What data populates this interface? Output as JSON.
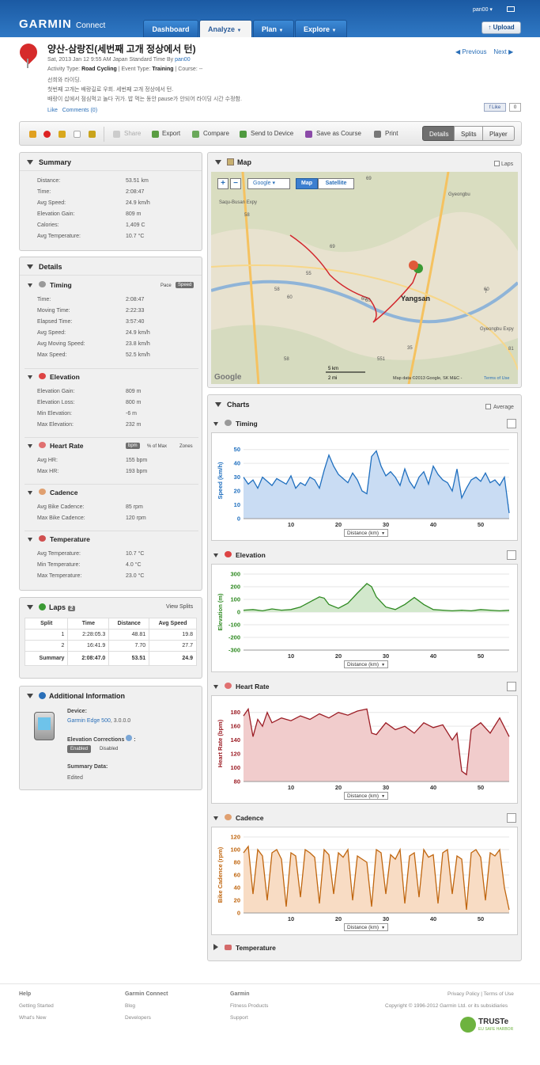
{
  "nav": {
    "logo": "GARMIN",
    "logo_sub": "Connect",
    "tabs": [
      "Dashboard",
      "Analyze",
      "Plan",
      "Explore"
    ],
    "user": "pan00",
    "upload": "Upload"
  },
  "activity": {
    "title": "양산-삼랑진(세번째 고개 정상에서 턴)",
    "date_prefix": "Sat, 2013 Jan 12 9:55 AM Japan Standard Time By",
    "author": "pan00",
    "type_label": "Activity Type:",
    "type": "Road Cycling",
    "event_label": "| Event Type:",
    "event": "Training",
    "course_label": "| Course: --",
    "desc1": "선희와 라이딩.",
    "desc2": "첫번째 고개는 배랑길로 우회. 세번째 고개 정상에서 턴.",
    "desc3": "배랑이 삽에서 점심먹고 놀다 귀가. 밥 먹는 동안 pause가 안되어 라이딩 시간 수정함.",
    "like": "Like",
    "comments": "Comments (0)",
    "previous": "Previous",
    "next": "Next",
    "fb_like": "Like",
    "fb_count": "0"
  },
  "toolbar": {
    "share": "Share",
    "export": "Export",
    "compare": "Compare",
    "send": "Send to Device",
    "save_course": "Save as Course",
    "print": "Print",
    "views": [
      "Details",
      "Splits",
      "Player"
    ]
  },
  "summary": {
    "title": "Summary",
    "rows": [
      {
        "label": "Distance:",
        "value": "53.51 km"
      },
      {
        "label": "Time:",
        "value": "2:08:47"
      },
      {
        "label": "Avg Speed:",
        "value": "24.9 km/h"
      },
      {
        "label": "Elevation Gain:",
        "value": "809 m"
      },
      {
        "label": "Calories:",
        "value": "1,409 C"
      },
      {
        "label": "Avg Temperature:",
        "value": "10.7 °C"
      }
    ]
  },
  "details": {
    "title": "Details",
    "timing": {
      "title": "Timing",
      "pace": "Pace",
      "speed": "Speed",
      "rows": [
        {
          "label": "Time:",
          "value": "2:08:47"
        },
        {
          "label": "Moving Time:",
          "value": "2:22:33"
        },
        {
          "label": "Elapsed Time:",
          "value": "3:57:40"
        },
        {
          "label": "Avg Speed:",
          "value": "24.9 km/h"
        },
        {
          "label": "Avg Moving Speed:",
          "value": "23.8 km/h"
        },
        {
          "label": "Max Speed:",
          "value": "52.5 km/h"
        }
      ]
    },
    "elevation": {
      "title": "Elevation",
      "rows": [
        {
          "label": "Elevation Gain:",
          "value": "809 m"
        },
        {
          "label": "Elevation Loss:",
          "value": "800 m"
        },
        {
          "label": "Min Elevation:",
          "value": "-6 m"
        },
        {
          "label": "Max Elevation:",
          "value": "232 m"
        }
      ]
    },
    "hr": {
      "title": "Heart Rate",
      "bpm": "bpm",
      "pct": "% of Max",
      "zones": "Zones",
      "rows": [
        {
          "label": "Avg HR:",
          "value": "155 bpm"
        },
        {
          "label": "Max HR:",
          "value": "193 bpm"
        }
      ]
    },
    "cadence": {
      "title": "Cadence",
      "rows": [
        {
          "label": "Avg Bike Cadence:",
          "value": "85 rpm"
        },
        {
          "label": "Max Bike Cadence:",
          "value": "120 rpm"
        }
      ]
    },
    "temperature": {
      "title": "Temperature",
      "rows": [
        {
          "label": "Avg Temperature:",
          "value": "10.7 °C"
        },
        {
          "label": "Min Temperature:",
          "value": "4.0 °C"
        },
        {
          "label": "Max Temperature:",
          "value": "23.0 °C"
        }
      ]
    }
  },
  "laps": {
    "title": "Laps",
    "count": "2",
    "view_splits": "View Splits",
    "headers": [
      "Split",
      "Time",
      "Distance",
      "Avg Speed"
    ],
    "rows": [
      [
        "1",
        "2:28:05.3",
        "48.81",
        "19.8"
      ],
      [
        "2",
        "16:41.9",
        "7.70",
        "27.7"
      ],
      [
        "Summary",
        "2:08:47.0",
        "53.51",
        "24.9"
      ]
    ]
  },
  "additional": {
    "title": "Additional Information",
    "device_label": "Device:",
    "device": "Garmin Edge 500",
    "device_ver": ", 3.0.0.0",
    "elev_corr": "Elevation Corrections",
    "enabled": "Enabled",
    "disabled": "Disabled",
    "summary_data": "Summary Data:",
    "edited": "Edited"
  },
  "map": {
    "title": "Map",
    "laps": "Laps",
    "provider": "Google",
    "map_btn": "Map",
    "sat_btn": "Satellite",
    "city": "Yangsan",
    "scale_km": "5 km",
    "scale_mi": "2 mi",
    "copyright": "Map data ©2013 Google, SK M&C -",
    "terms": "Terms of Use",
    "google": "Google",
    "road_labels": [
      "Gyeongbu",
      "Saqu-Busan Expy",
      "58",
      "69",
      "55",
      "60",
      "58",
      "60",
      "60",
      "69",
      "60",
      "7",
      "35",
      "551",
      "58",
      "81",
      "Gyeongbu Expy"
    ]
  },
  "charts": {
    "title": "Charts",
    "average": "Average",
    "xlabel": "Distance (km)",
    "temperature_title": "Temperature"
  },
  "chart_data": [
    {
      "type": "line",
      "title": "Timing",
      "ylabel": "Speed (km/h)",
      "xlabel": "Distance (km)",
      "color": "#1f6fbf",
      "fill": "#c9dcf3",
      "xlim": [
        0,
        56
      ],
      "ylim": [
        0,
        55
      ],
      "yticks": [
        0,
        10,
        20,
        30,
        40,
        50
      ],
      "xticks": [
        10,
        20,
        30,
        40,
        50
      ],
      "x": [
        0,
        1,
        2,
        3,
        4,
        5,
        6,
        7,
        8,
        9,
        10,
        11,
        12,
        13,
        14,
        15,
        16,
        17,
        18,
        19,
        20,
        21,
        22,
        23,
        24,
        25,
        26,
        27,
        28,
        29,
        30,
        31,
        32,
        33,
        34,
        35,
        36,
        37,
        38,
        39,
        40,
        41,
        42,
        43,
        44,
        45,
        46,
        47,
        48,
        49,
        50,
        51,
        52,
        53,
        54,
        55,
        56
      ],
      "y": [
        30,
        25,
        28,
        22,
        30,
        27,
        24,
        29,
        27,
        25,
        31,
        22,
        26,
        24,
        30,
        28,
        22,
        35,
        46,
        38,
        32,
        29,
        26,
        33,
        28,
        20,
        18,
        45,
        49,
        38,
        31,
        34,
        30,
        24,
        36,
        27,
        22,
        30,
        34,
        25,
        38,
        32,
        28,
        26,
        20,
        36,
        15,
        22,
        28,
        30,
        27,
        33,
        26,
        28,
        24,
        30,
        4
      ]
    },
    {
      "type": "line",
      "title": "Elevation",
      "ylabel": "Elevation (m)",
      "xlabel": "Distance (km)",
      "color": "#2f8a22",
      "fill": "#d2e8cc",
      "xlim": [
        0,
        56
      ],
      "ylim": [
        -300,
        300
      ],
      "yticks": [
        -300,
        -200,
        -100,
        0,
        100,
        200,
        300
      ],
      "xticks": [
        10,
        20,
        30,
        40,
        50
      ],
      "x": [
        0,
        2,
        4,
        6,
        8,
        10,
        12,
        14,
        16,
        17,
        18,
        20,
        22,
        24,
        26,
        27,
        28,
        30,
        32,
        34,
        36,
        38,
        40,
        42,
        44,
        46,
        48,
        50,
        52,
        54,
        56
      ],
      "y": [
        15,
        20,
        10,
        25,
        15,
        20,
        40,
        80,
        120,
        110,
        60,
        30,
        70,
        150,
        225,
        200,
        120,
        40,
        20,
        60,
        115,
        60,
        20,
        15,
        10,
        15,
        10,
        20,
        15,
        10,
        15
      ]
    },
    {
      "type": "line",
      "title": "Heart Rate",
      "ylabel": "Heart Rate (bpm)",
      "xlabel": "Distance (km)",
      "color": "#9b1c24",
      "fill": "#f1cccc",
      "xlim": [
        0,
        56
      ],
      "ylim": [
        80,
        190
      ],
      "yticks": [
        80,
        100,
        120,
        140,
        160,
        180
      ],
      "xticks": [
        10,
        20,
        30,
        40,
        50
      ],
      "x": [
        0,
        1,
        2,
        3,
        4,
        5,
        6,
        8,
        10,
        12,
        14,
        16,
        18,
        20,
        22,
        24,
        26,
        27,
        28,
        30,
        32,
        34,
        36,
        38,
        40,
        42,
        44,
        45,
        46,
        47,
        48,
        50,
        52,
        54,
        56
      ],
      "y": [
        175,
        185,
        145,
        170,
        160,
        180,
        165,
        172,
        168,
        175,
        170,
        178,
        172,
        180,
        176,
        182,
        185,
        150,
        148,
        165,
        155,
        160,
        150,
        165,
        158,
        162,
        140,
        150,
        95,
        90,
        155,
        165,
        150,
        172,
        145
      ]
    },
    {
      "type": "line",
      "title": "Cadence",
      "ylabel": "Bike Cadence (rpm)",
      "xlabel": "Distance (km)",
      "color": "#c0660f",
      "fill": "#f8dcc4",
      "xlim": [
        0,
        56
      ],
      "ylim": [
        0,
        120
      ],
      "yticks": [
        0,
        20,
        40,
        60,
        80,
        100,
        120
      ],
      "xticks": [
        10,
        20,
        30,
        40,
        50
      ],
      "x": [
        0,
        1,
        2,
        3,
        4,
        5,
        6,
        7,
        8,
        9,
        10,
        11,
        12,
        13,
        14,
        15,
        16,
        17,
        18,
        19,
        20,
        21,
        22,
        23,
        24,
        25,
        26,
        27,
        28,
        29,
        30,
        31,
        32,
        33,
        34,
        35,
        36,
        37,
        38,
        39,
        40,
        41,
        42,
        43,
        44,
        45,
        46,
        47,
        48,
        49,
        50,
        51,
        52,
        53,
        54,
        55,
        56
      ],
      "y": [
        95,
        105,
        30,
        100,
        90,
        20,
        95,
        100,
        85,
        10,
        95,
        90,
        25,
        100,
        95,
        88,
        15,
        100,
        92,
        30,
        95,
        88,
        100,
        20,
        90,
        85,
        80,
        10,
        100,
        95,
        30,
        92,
        85,
        100,
        15,
        90,
        95,
        25,
        100,
        88,
        92,
        15,
        95,
        100,
        30,
        90,
        85,
        5,
        95,
        100,
        88,
        20,
        95,
        90,
        100,
        40,
        5
      ]
    }
  ],
  "footer": {
    "help": "Help",
    "getting_started": "Getting Started",
    "whats_new": "What's New",
    "gc": "Garmin Connect",
    "blog": "Blog",
    "developers": "Developers",
    "garmin": "Garmin",
    "fitness": "Fitness Products",
    "support": "Support",
    "privacy": "Privacy Policy | Terms of Use",
    "copyright": "Copyright © 1996-2012 Garmin Ltd. or its subsidiaries",
    "truste": "TRUSTe",
    "truste_sub": "EU SAFE HARBOR"
  }
}
